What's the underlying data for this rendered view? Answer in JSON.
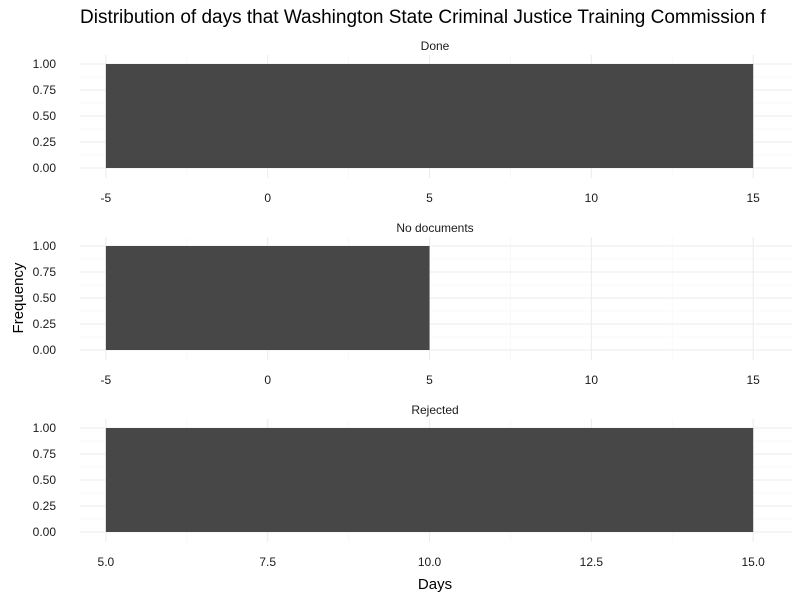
{
  "chart_data": {
    "type": "bar",
    "title": "Distribution of days that Washington State Criminal Justice Training Commission f",
    "xlabel": "Days",
    "ylabel": "Frequency",
    "grid": true,
    "bar_color": "#474747",
    "panels": [
      {
        "label": "Done",
        "xlim": [
          -5.8,
          16.2
        ],
        "ylim": [
          0,
          1.0
        ],
        "x_ticks": [
          -5,
          0,
          5,
          10,
          15
        ],
        "x_tick_labels": [
          "-5",
          "0",
          "5",
          "10",
          "15"
        ],
        "y_ticks": [
          0,
          0.25,
          0.5,
          0.75,
          1.0
        ],
        "y_tick_labels": [
          "0.00",
          "0.25",
          "0.50",
          "0.75",
          "1.00"
        ],
        "bars": [
          {
            "x_start": -5,
            "x_end": 15,
            "value": 1
          }
        ]
      },
      {
        "label": "No documents",
        "xlim": [
          -5.8,
          16.2
        ],
        "ylim": [
          0,
          1.0
        ],
        "x_ticks": [
          -5,
          0,
          5,
          10,
          15
        ],
        "x_tick_labels": [
          "-5",
          "0",
          "5",
          "10",
          "15"
        ],
        "y_ticks": [
          0,
          0.25,
          0.5,
          0.75,
          1.0
        ],
        "y_tick_labels": [
          "0.00",
          "0.25",
          "0.50",
          "0.75",
          "1.00"
        ],
        "bars": [
          {
            "x_start": -5,
            "x_end": 5,
            "value": 1
          }
        ]
      },
      {
        "label": "Rejected",
        "xlim": [
          4.6,
          15.6
        ],
        "ylim": [
          0,
          1.0
        ],
        "x_ticks": [
          5,
          7.5,
          10,
          12.5,
          15
        ],
        "x_tick_labels": [
          "5.0",
          "7.5",
          "10.0",
          "12.5",
          "15.0"
        ],
        "y_ticks": [
          0,
          0.25,
          0.5,
          0.75,
          1.0
        ],
        "y_tick_labels": [
          "0.00",
          "0.25",
          "0.50",
          "0.75",
          "1.00"
        ],
        "bars": [
          {
            "x_start": 5,
            "x_end": 15,
            "value": 1
          }
        ]
      }
    ]
  }
}
